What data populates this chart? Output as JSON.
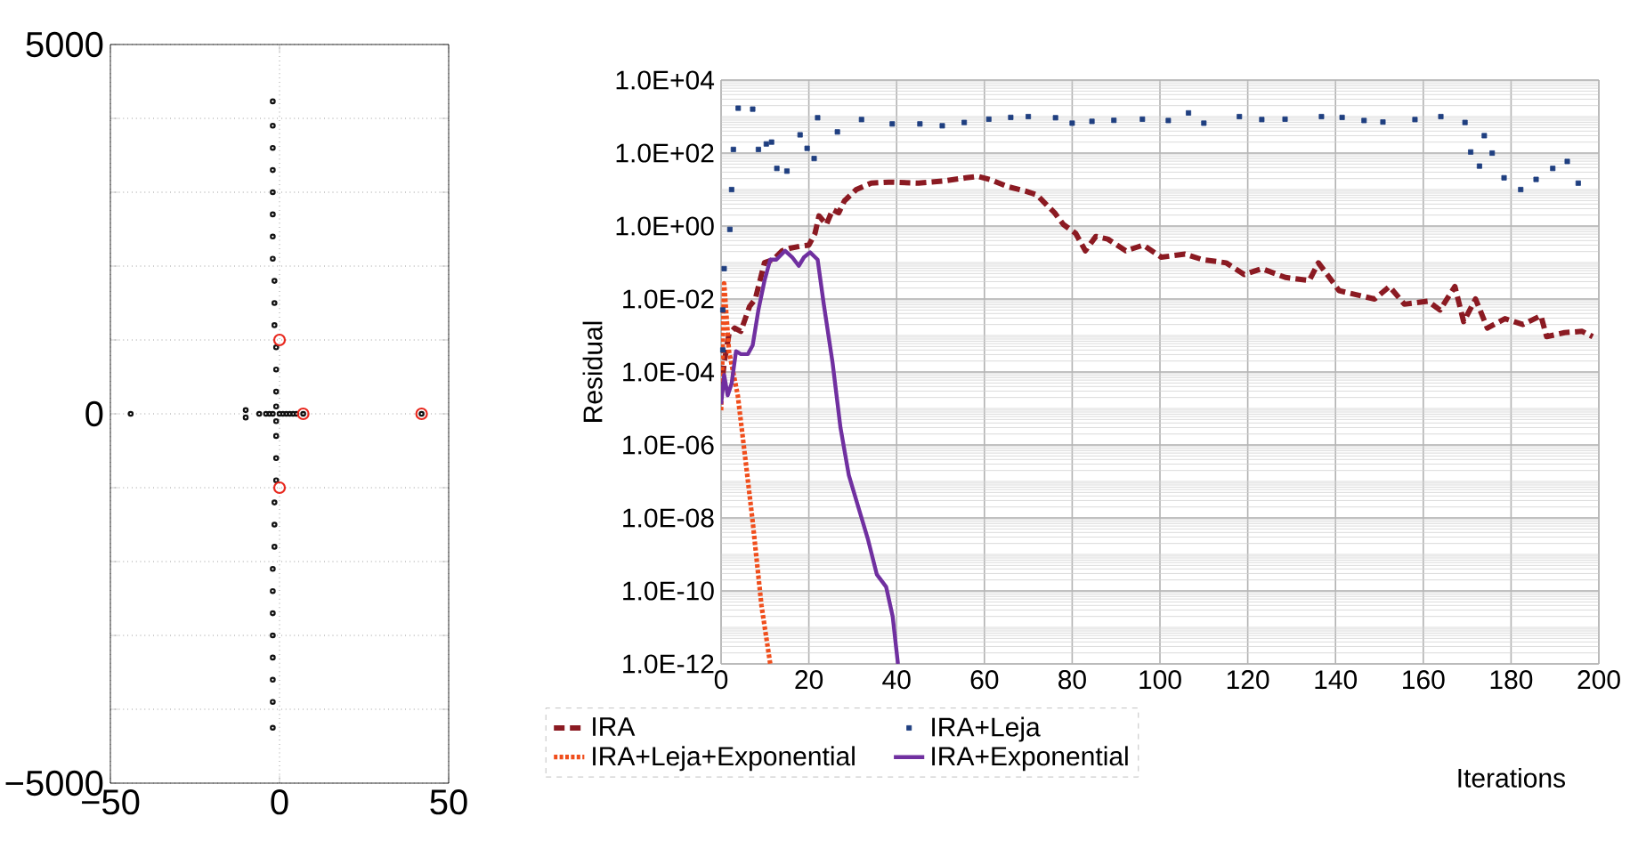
{
  "chart_data": [
    {
      "type": "scatter",
      "xlim": [
        -50,
        50
      ],
      "ylim": [
        -5000,
        5000
      ],
      "grid": true,
      "marker": "circle",
      "xticks": [
        {
          "value": -50,
          "label": "−50"
        },
        0,
        50
      ],
      "yticks": [
        {
          "value": -5000,
          "label": "−5000"
        },
        {
          "value": -4000,
          "label": null
        },
        {
          "value": -3000,
          "label": null
        },
        {
          "value": -2000,
          "label": null
        },
        {
          "value": -1000,
          "label": null
        },
        0,
        {
          "value": 1000,
          "label": null
        },
        {
          "value": 2000,
          "label": null
        },
        {
          "value": 3000,
          "label": null
        },
        {
          "value": 4000,
          "label": null
        },
        5000
      ],
      "series": [
        {
          "color": "#111111",
          "x": [
            -2,
            -2,
            -2,
            -2,
            -2,
            -2,
            -2,
            -2,
            -1.5,
            -1.5,
            -1.5,
            -1,
            -1,
            -1,
            -1,
            -1,
            -1,
            -1,
            -1,
            -1.5,
            -1.5,
            -1.5,
            -2,
            -2,
            -2,
            -2,
            -2,
            -2,
            -2,
            -2,
            -44,
            -10,
            -10,
            -6,
            -4,
            -3,
            -2,
            0,
            1,
            2,
            3,
            4,
            5,
            7,
            42
          ],
          "values": [
            4230,
            3900,
            3600,
            3300,
            3000,
            2700,
            2400,
            2100,
            1800,
            1500,
            1200,
            900,
            600,
            300,
            100,
            -100,
            -300,
            -600,
            -900,
            -1200,
            -1500,
            -1800,
            -2100,
            -2400,
            -2700,
            -3000,
            -3300,
            -3600,
            -3900,
            -4250,
            0,
            50,
            -50,
            0,
            0,
            0,
            0,
            0,
            0,
            0,
            0,
            0,
            0,
            0,
            0
          ]
        },
        {
          "color": "#e8281e",
          "x": [
            0,
            0,
            7,
            42
          ],
          "values": [
            1000,
            -1000,
            0,
            0
          ]
        }
      ]
    },
    {
      "type": "line",
      "xlabel": "Iterations",
      "ylabel": "Residual",
      "log": "y",
      "grid": true,
      "legend": "bottom",
      "xlim": [
        0,
        200
      ],
      "xticks": [
        0,
        20,
        40,
        60,
        80,
        100,
        120,
        140,
        160,
        180,
        200
      ],
      "ylim": [
        1e-12,
        10000
      ],
      "yticks": [
        {
          "value": 1e-12,
          "label": "1.0E-12"
        },
        {
          "value": 1e-10,
          "label": "1.0E-10"
        },
        {
          "value": 1e-08,
          "label": "1.0E-08"
        },
        {
          "value": 1e-06,
          "label": "1.0E-06"
        },
        {
          "value": 0.0001,
          "label": "1.0E-04"
        },
        {
          "value": 0.01,
          "label": "1.0E-02"
        },
        {
          "value": 1,
          "label": "1.0E+00"
        },
        {
          "value": 100,
          "label": "1.0E+02"
        },
        {
          "value": 10000,
          "label": "1.0E+04"
        }
      ],
      "series": [
        {
          "name": "IRA",
          "type": "line",
          "line_style": "dashed",
          "color": "#8b1a22",
          "x": [
            0,
            0.7,
            1.8,
            3.1,
            4.5,
            6.5,
            7.8,
            9.9,
            11.9,
            13.9,
            15.9,
            18,
            20,
            21.4,
            22.3,
            24,
            25.4,
            26.8,
            28.1,
            30.8,
            34.2,
            38.2,
            45,
            50.4,
            55.8,
            58.5,
            61.2,
            65.3,
            69.3,
            72,
            74,
            76,
            78,
            80.8,
            83,
            85.4,
            88.1,
            92.2,
            96.2,
            100.3,
            105.7,
            109.7,
            115.1,
            119.2,
            123.2,
            128.6,
            134,
            136.1,
            138.1,
            140.8,
            144.9,
            148.9,
            152.3,
            155.7,
            161.1,
            163.8,
            167.2,
            169.2,
            171.9,
            174.6,
            178.6,
            182.7,
            186.8,
            188.1,
            192.2,
            196.2,
            198.6
          ],
          "values": [
            2.8e-05,
            0.00018,
            0.0011,
            0.0016,
            0.0013,
            0.0063,
            0.01,
            0.1,
            0.12,
            0.21,
            0.25,
            0.28,
            0.3,
            0.63,
            1.9,
            1.1,
            2.8,
            2.3,
            4.9,
            10,
            15,
            16,
            15,
            17,
            21,
            23,
            19,
            12,
            9.1,
            7.1,
            4,
            2.3,
            1.1,
            0.63,
            0.21,
            0.52,
            0.44,
            0.21,
            0.3,
            0.14,
            0.17,
            0.12,
            0.098,
            0.047,
            0.068,
            0.039,
            0.032,
            0.098,
            0.047,
            0.017,
            0.013,
            0.01,
            0.022,
            0.0072,
            0.0087,
            0.005,
            0.022,
            0.0024,
            0.01,
            0.0016,
            0.0029,
            0.002,
            0.0035,
            0.00093,
            0.0012,
            0.0013,
            0.00093
          ]
        },
        {
          "name": "IRA+Leja",
          "type": "scatter",
          "marker": "square",
          "color": "#1f3f80",
          "x": [
            0.4,
            0.4,
            0.7,
            2,
            2.4,
            2.8,
            3.9,
            7.2,
            8.5,
            10.3,
            11.5,
            12.7,
            15,
            18,
            19.6,
            21.2,
            22,
            26.5,
            32,
            39,
            45.3,
            50.4,
            55.4,
            61,
            66,
            70,
            76.2,
            80,
            84.5,
            89.5,
            96,
            101.9,
            106.5,
            110,
            118.1,
            123.2,
            128.5,
            136.8,
            141.5,
            146.5,
            150.8,
            158.1,
            164,
            169.5,
            170.8,
            172.8,
            173.9,
            175.7,
            178.4,
            182.2,
            185.7,
            189.5,
            192.8,
            195.3
          ],
          "values": [
            0.0004,
            0.005,
            0.068,
            0.81,
            10,
            126,
            1700,
            1600,
            126,
            178,
            200,
            38,
            32,
            316,
            135,
            71,
            930,
            380,
            830,
            630,
            630,
            560,
            690,
            850,
            950,
            1000,
            930,
            660,
            740,
            790,
            850,
            780,
            1260,
            660,
            1000,
            830,
            850,
            1000,
            950,
            780,
            710,
            830,
            1000,
            690,
            107,
            44,
            300,
            100,
            21,
            10,
            19,
            38,
            59,
            15
          ]
        },
        {
          "name": "IRA+Leja+Exponential",
          "type": "line",
          "line_style": "dotted",
          "color": "#f04e1c",
          "x": [
            0,
            0.7,
            1.8,
            3.8,
            5.8,
            7.2,
            9.2,
            11.2
          ],
          "values": [
            8.9e-06,
            0.027,
            0.00037,
            2.3e-05,
            2.2e-07,
            7.9e-09,
            4e-11,
            1e-12
          ]
        },
        {
          "name": "IRA+Exponential",
          "type": "line",
          "line_style": "solid",
          "color": "#7030a0",
          "x": [
            0,
            0.7,
            1.5,
            2.4,
            3.4,
            4.5,
            6.1,
            7.2,
            8.5,
            9.9,
            11.2,
            12.6,
            14.6,
            16.2,
            17.7,
            18.9,
            20.3,
            22,
            23.4,
            25.4,
            27.2,
            29.1,
            31.5,
            33.5,
            35.5,
            37.6,
            39.1,
            40.3
          ],
          "values": [
            1.3e-05,
            8.3e-05,
            2.3e-05,
            4.8e-05,
            0.00037,
            0.00031,
            0.00031,
            0.00054,
            0.005,
            0.032,
            0.12,
            0.12,
            0.21,
            0.14,
            0.081,
            0.14,
            0.19,
            0.12,
            0.0072,
            0.00018,
            3e-06,
            1.5e-07,
            1.6e-08,
            2.5e-09,
            2.8e-10,
            1.3e-10,
            2e-11,
            1e-12
          ]
        }
      ]
    }
  ]
}
